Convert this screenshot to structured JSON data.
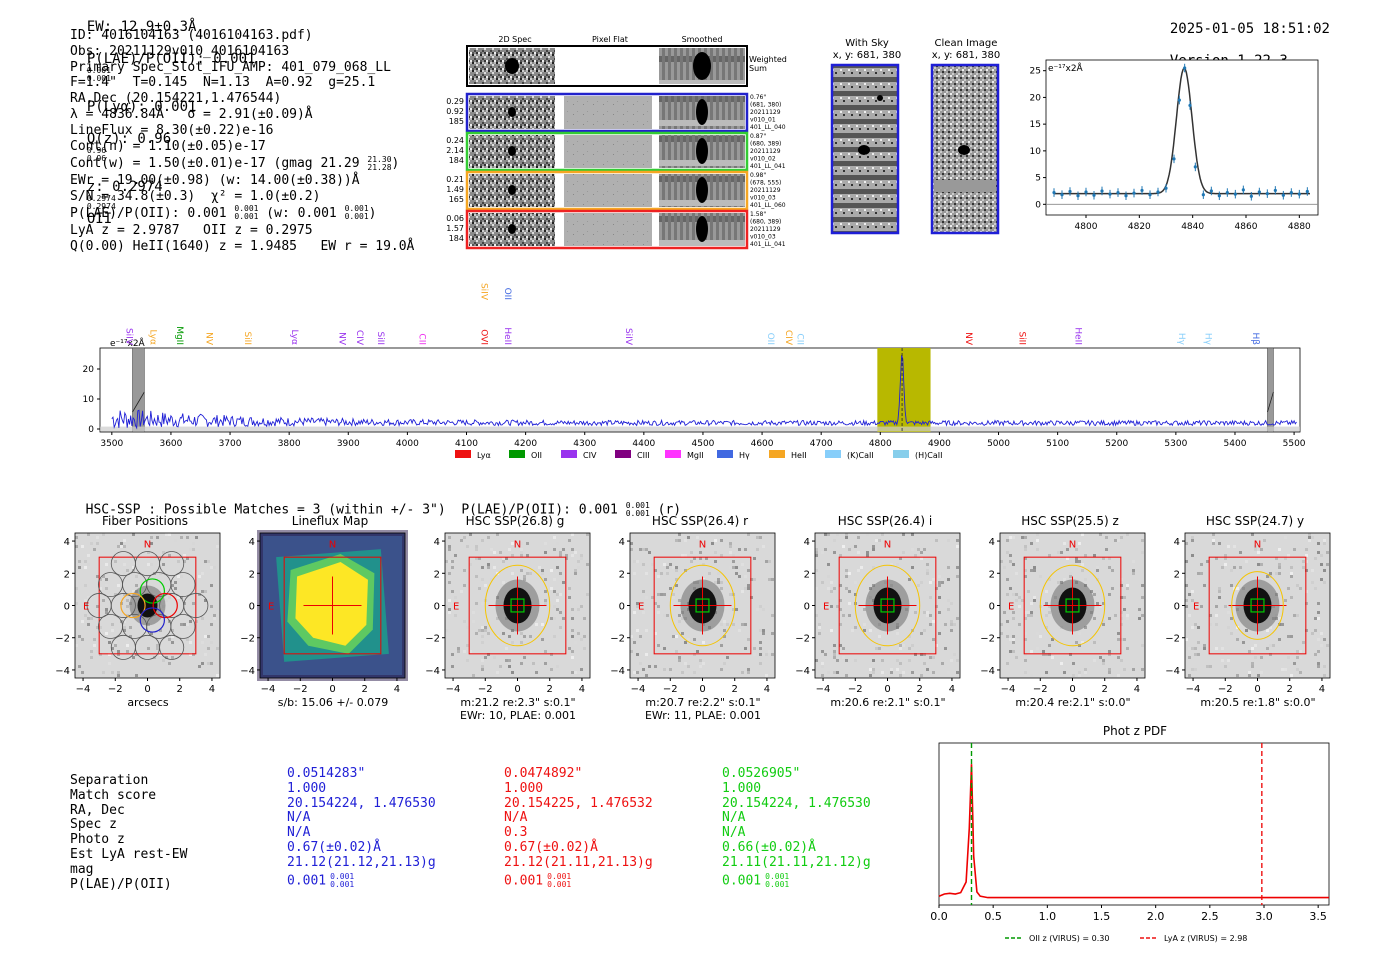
{
  "header": {
    "ew": "EW: 12.9±0.3Å",
    "plae_label": "P(LAE)/P(OII): 0.001",
    "plae_hi": "0.001",
    "plae_lo": "0.001",
    "plya": "P(Lyα): 0.001",
    "qz": "Q(z): 0.96",
    "qz_hi": "0.96",
    "qz_lo": "0.96",
    "z": "z: 0.2974",
    "z_hi": "0.2974",
    "z_lo": "0.2974",
    "z_line": "OII",
    "timestamp": "2025-01-05 18:51:02",
    "version": "Version 1.22.3"
  },
  "info": {
    "id": "ID: 4016104163 (4016104163.pdf)",
    "obs": "Obs: 20211129v010_4016104163",
    "primary": "Primary Spec_Slot_IFU_AMP: 401_079_068_LL",
    "fit": "F=1.4\"  T=0.145  N=1.13  A=0.92  g=25.1",
    "radec": "RA,Dec (20.154221,1.476544)",
    "lambda": "λ = 4836.84Å   σ = 2.91(±0.09)Å",
    "lineflux": "LineFlux = 8.30(±0.22)e-16",
    "contn": "Cont(n) = 1.10(±0.05)e-17",
    "contw": "Cont(w) = 1.50(±0.01)e-17 (gmag 21.29",
    "contw_hi": "21.30",
    "contw_lo": "21.28",
    "contw_end": ")",
    "ewr": "EWr = 19.00(±0.98) (w: 14.00(±0.38))Å",
    "sn": "S/N = 34.8(±0.3)  χ² = 1.0(±0.2)",
    "plae": "P(LAE)/P(OII): 0.001",
    "plae_hi": "0.001",
    "plae_lo": "0.001",
    "plae_w": " (w: 0.001",
    "plae_w_hi": "0.001",
    "plae_w_lo": "0.001",
    "plae_end": ")",
    "lyaz": "LyA z = 2.9787   OII z = 0.2975",
    "q": "Q(0.00) HeII(1640) z = 1.9485   EW r = 19.0Å"
  },
  "panels": {
    "col_2d": "2D Spec",
    "col_flat": "Pixel Flat",
    "col_smooth": "Smoothed",
    "weighted": "Weighted",
    "sum": "Sum",
    "rows": [
      {
        "vals": [
          "0.29",
          "0.92",
          "185"
        ],
        "meta": [
          "0.76\"",
          "(681, 380)",
          "20211129",
          "v010_01",
          "401_LL_040"
        ],
        "color": "#2222cc"
      },
      {
        "vals": [
          "0.24",
          "2.14",
          "184"
        ],
        "meta": [
          "0.87\"",
          "(680, 389)",
          "20211129",
          "v010_02",
          "401_LL_041"
        ],
        "color": "#33cc33"
      },
      {
        "vals": [
          "0.21",
          "1.49",
          "165"
        ],
        "meta": [
          "0.98\"",
          "(678, 555)",
          "20211129",
          "v010_03",
          "401_LL_060"
        ],
        "color": "#f5a623"
      },
      {
        "vals": [
          "0.06",
          "1.57",
          "184"
        ],
        "meta": [
          "1.58\"",
          "(680, 389)",
          "20211129",
          "v010_03",
          "401_LL_041"
        ],
        "color": "#ee2222"
      }
    ]
  },
  "sky": {
    "with_sky_title": "With Sky",
    "with_sky_xy": "x, y: 681, 380",
    "clean_title": "Clean Image",
    "clean_xy": "x, y: 681, 380"
  },
  "colors": {
    "blue": "#1f1fd6",
    "red": "#ee1111",
    "green": "#11cc11",
    "orange": "#f5a623",
    "purple": "#9933ee",
    "olive": "#b8b800",
    "errbar": "#1f77b4"
  },
  "chart_data": [
    {
      "type": "scatter",
      "name": "line-fit",
      "ylabel": "e⁻¹⁷x2Å",
      "xlim": [
        4785,
        4887
      ],
      "ylim": [
        -2,
        27
      ],
      "xticks": [
        4800,
        4820,
        4840,
        4860,
        4880
      ],
      "yticks": [
        0,
        5,
        10,
        15,
        20,
        25
      ],
      "x": [
        4788,
        4791,
        4794,
        4797,
        4800,
        4803,
        4806,
        4809,
        4812,
        4815,
        4818,
        4821,
        4824,
        4827,
        4830,
        4833,
        4835,
        4837,
        4839,
        4841,
        4844,
        4847,
        4850,
        4853,
        4856,
        4859,
        4862,
        4865,
        4868,
        4871,
        4874,
        4877,
        4880,
        4883
      ],
      "y": [
        2.2,
        1.8,
        2.4,
        1.6,
        2.3,
        1.7,
        2.5,
        1.9,
        2.2,
        1.6,
        2.1,
        2.6,
        1.8,
        2.3,
        3.0,
        8.5,
        19.5,
        25.5,
        18.5,
        7.0,
        1.8,
        2.5,
        1.6,
        2.2,
        1.9,
        2.7,
        1.5,
        2.3,
        2.0,
        2.6,
        1.7,
        2.2,
        1.9,
        2.4
      ],
      "err": 0.8,
      "fit": {
        "center": 4836.84,
        "sigma": 2.91,
        "amplitude": 23.5,
        "continuum": 2.0
      }
    },
    {
      "type": "line",
      "name": "full-spectrum",
      "ylabel": "e⁻¹⁷x2Å",
      "xlim": [
        3480,
        5510
      ],
      "ylim": [
        -1,
        27
      ],
      "xticks": [
        3500,
        3600,
        3700,
        3800,
        3900,
        4000,
        4100,
        4200,
        4300,
        4400,
        4500,
        4600,
        4700,
        4800,
        4900,
        5000,
        5100,
        5200,
        5300,
        5400,
        5500
      ],
      "yticks": [
        0,
        10,
        20
      ],
      "highlight": [
        4795,
        4885
      ],
      "line_center": 4836.84,
      "masked": [
        [
          3535,
          3555
        ],
        [
          5455,
          5465
        ]
      ],
      "line_labels": [
        {
          "name": "SiIV",
          "x": 3520,
          "color": "#9933ee"
        },
        {
          "name": "Lyα",
          "x": 3560,
          "color": "#f5a623"
        },
        {
          "name": "MgII",
          "x": 3605,
          "color": "#009900"
        },
        {
          "name": "NV",
          "x": 3655,
          "color": "#f5a623"
        },
        {
          "name": "SiII",
          "x": 3720,
          "color": "#f5a623"
        },
        {
          "name": "Lyα",
          "x": 3800,
          "color": "#9933ee"
        },
        {
          "name": "NV",
          "x": 3880,
          "color": "#9933ee"
        },
        {
          "name": "CIV",
          "x": 3910,
          "color": "#9933ee"
        },
        {
          "name": "SiII",
          "x": 3945,
          "color": "#9933ee"
        },
        {
          "name": "CII",
          "x": 4015,
          "color": "#ee33ee"
        },
        {
          "name": "OVI",
          "x": 4120,
          "color": "#ee1111"
        },
        {
          "name": "HeII",
          "x": 4160,
          "color": "#9933ee"
        },
        {
          "name": "SiIV",
          "x": 4365,
          "color": "#9933ee"
        },
        {
          "name": "OII",
          "x": 4605,
          "color": "#87cefa"
        },
        {
          "name": "CIV",
          "x": 4635,
          "color": "#f5a623"
        },
        {
          "name": "CII",
          "x": 4655,
          "color": "#87cefa"
        },
        {
          "name": "NV",
          "x": 4940,
          "color": "#ee1111"
        },
        {
          "name": "SiII",
          "x": 5030,
          "color": "#ee1111"
        },
        {
          "name": "HeII",
          "x": 5125,
          "color": "#9933ee"
        },
        {
          "name": "Hγ",
          "x": 5300,
          "color": "#87cefa"
        },
        {
          "name": "Hγ",
          "x": 5345,
          "color": "#87cefa"
        },
        {
          "name": "Hβ",
          "x": 5425,
          "color": "#4169e1"
        }
      ],
      "line_labels_high": [
        {
          "name": "SiIV",
          "x": 4120,
          "color": "#f5a623"
        },
        {
          "name": "OII",
          "x": 4160,
          "color": "#4169e1"
        }
      ],
      "legend": [
        {
          "name": "Lyα",
          "color": "#ee1111"
        },
        {
          "name": "OII",
          "color": "#009900"
        },
        {
          "name": "CIV",
          "color": "#9933ee"
        },
        {
          "name": "CIII",
          "color": "#800080"
        },
        {
          "name": "MgII",
          "color": "#ff33ff"
        },
        {
          "name": "Hγ",
          "color": "#4169e1"
        },
        {
          "name": "HeII",
          "color": "#f5a623"
        },
        {
          "name": "(K)CaII",
          "color": "#87cefa"
        },
        {
          "name": "(H)CaII",
          "color": "#87ceeb"
        }
      ]
    },
    {
      "type": "line",
      "name": "photz-pdf",
      "title": "Phot z PDF",
      "xlim": [
        0,
        3.6
      ],
      "xticks": [
        0.0,
        0.5,
        1.0,
        1.5,
        2.0,
        2.5,
        3.0,
        3.5
      ],
      "x": [
        0.0,
        0.05,
        0.1,
        0.15,
        0.2,
        0.25,
        0.28,
        0.3,
        0.32,
        0.35,
        0.38,
        0.45,
        0.6,
        1.0,
        2.0,
        3.6
      ],
      "y": [
        0.02,
        0.035,
        0.04,
        0.035,
        0.045,
        0.12,
        0.5,
        0.95,
        0.3,
        0.05,
        0.02,
        0.01,
        0.01,
        0.01,
        0.01,
        0.01
      ],
      "vlines": [
        {
          "name": "OII z (VIRUS) = 0.30",
          "x": 0.3,
          "color": "#009900"
        },
        {
          "name": "LyA z (VIRUS) = 2.98",
          "x": 2.98,
          "color": "#ee1111"
        }
      ]
    }
  ],
  "hsc": {
    "summary": "HSC-SSP : Possible Matches = 3 (within +/- 3\")  P(LAE)/P(OII): 0.001",
    "summary_hi": "0.001",
    "summary_lo": "0.001",
    "summary_band": "(r)",
    "axis_ticks": [
      "4",
      "2",
      "0",
      "−2",
      "−4"
    ],
    "x_ticks": [
      "−4",
      "−2",
      "0",
      "2",
      "4"
    ],
    "north": "N",
    "east": "E",
    "cutouts": [
      {
        "title": "Fiber Positions",
        "cap1": "arcsecs",
        "cap2": ""
      },
      {
        "title": "Lineflux Map",
        "cap1": "s/b: 15.06 +/- 0.079",
        "cap2": ""
      },
      {
        "title": "HSC SSP(26.8) g",
        "cap1": "m:21.2  re:2.3\"  s:0.1\"",
        "cap2": "EWr: 10, PLAE: 0.001"
      },
      {
        "title": "HSC SSP(26.4) r",
        "cap1": "m:20.7  re:2.2\"  s:0.1\"",
        "cap2": "EWr: 11, PLAE: 0.001"
      },
      {
        "title": "HSC SSP(26.4) i",
        "cap1": "m:20.6  re:2.1\"  s:0.1\"",
        "cap2": ""
      },
      {
        "title": "HSC SSP(25.5) z",
        "cap1": "m:20.4  re:2.1\"  s:0.0\"",
        "cap2": ""
      },
      {
        "title": "HSC SSP(24.7) y",
        "cap1": "m:20.5  re:1.8\"  s:0.0\"",
        "cap2": ""
      }
    ]
  },
  "matches": {
    "labels": [
      "Separation",
      "Match score",
      "RA, Dec",
      "Spec z",
      "Photo z",
      "Est LyA rest-EW",
      "mag",
      "P(LAE)/P(OII)"
    ],
    "columns": [
      {
        "color": "#1f1fd6",
        "values": [
          "0.0514283\"",
          "1.000",
          "20.154224, 1.476530",
          "N/A",
          "N/A",
          "0.67(±0.02)Å",
          "21.12(21.12,21.13)g",
          "0.001"
        ],
        "frac_hi": "0.001",
        "frac_lo": "0.001"
      },
      {
        "color": "#ee1111",
        "values": [
          "0.0474892\"",
          "1.000",
          "20.154225, 1.476532",
          "N/A",
          "0.3",
          "0.67(±0.02)Å",
          "21.12(21.11,21.13)g",
          "0.001"
        ],
        "frac_hi": "0.001",
        "frac_lo": "0.001"
      },
      {
        "color": "#11cc11",
        "values": [
          "0.0526905\"",
          "1.000",
          "20.154224, 1.476530",
          "N/A",
          "N/A",
          "0.66(±0.02)Å",
          "21.11(21.11,21.12)g",
          "0.001"
        ],
        "frac_hi": "0.001",
        "frac_lo": "0.001"
      }
    ]
  }
}
